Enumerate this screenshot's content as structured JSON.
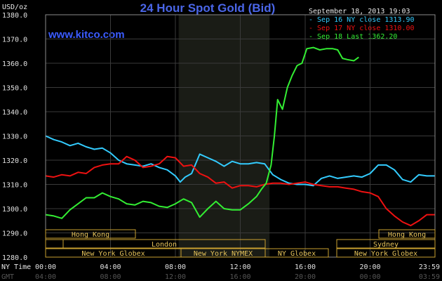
{
  "colors": {
    "background": "#000000",
    "title": "#4a66e8",
    "grid": "#3a3a3a",
    "session_box": "#c9a030",
    "session_text": "#e6c35a",
    "shade": "#1a1c16"
  },
  "header": {
    "unit": "USD/oz",
    "title": "24 Hour Spot Gold (Bid)",
    "timestamp": "September 18, 2013 19:03",
    "site": "www.kitco.com"
  },
  "axis_labels": {
    "ny_time": "NY Time",
    "gmt": "GMT"
  },
  "sessions_top": [
    "Hong Kong",
    "Hong Kong"
  ],
  "sessions_mid": [
    "London",
    "Sydney"
  ],
  "sessions_bottom": [
    "New York Globex",
    "New York NYMEX",
    "NY Globex",
    "New York Globex"
  ],
  "chart_data": {
    "type": "line",
    "ylim": [
      1280,
      1380
    ],
    "xlim": [
      0,
      24
    ],
    "y_ticks": [
      "1380.0",
      "1370.0",
      "1360.0",
      "1350.0",
      "1340.0",
      "1330.0",
      "1320.0",
      "1310.0",
      "1300.0",
      "1290.0",
      "1280.0"
    ],
    "y_tick_values": [
      1380,
      1370,
      1360,
      1350,
      1340,
      1330,
      1320,
      1310,
      1300,
      1290,
      1280
    ],
    "x_ticks": [
      "00:00",
      "04:00",
      "08:00",
      "12:00",
      "16:00",
      "20:00",
      "23:59"
    ],
    "x_tick_values": [
      0,
      4,
      8,
      12,
      16,
      20,
      24
    ],
    "gmt_ticks": [
      "04:00",
      "08:00",
      "12:00",
      "16:00",
      "20:00",
      "00:00",
      "03:59"
    ],
    "shaded_hours": [
      [
        8.2,
        13.8
      ]
    ],
    "series": [
      {
        "name": "Sep 16 NY close 1313.90",
        "color": "#33ccff",
        "x": [
          0,
          0.5,
          1,
          1.5,
          2,
          2.5,
          3,
          3.5,
          4,
          4.5,
          5,
          5.5,
          6,
          6.5,
          7,
          7.5,
          8,
          8.3,
          8.6,
          9,
          9.5,
          10,
          10.5,
          11,
          11.5,
          12,
          12.5,
          13,
          13.5,
          14,
          14.5,
          15,
          15.5,
          16,
          16.5,
          17,
          17.5,
          18,
          18.5,
          19,
          19.5,
          20,
          20.5,
          21,
          21.5,
          22,
          22.5,
          23,
          23.5,
          24
        ],
        "values": [
          1330.0,
          1328.5,
          1327.5,
          1326.0,
          1327.0,
          1325.5,
          1324.5,
          1325.0,
          1323.0,
          1320.0,
          1318.5,
          1318.0,
          1317.5,
          1318.5,
          1317.0,
          1316.0,
          1313.5,
          1311.0,
          1313.0,
          1314.5,
          1322.5,
          1321.0,
          1319.5,
          1317.5,
          1319.5,
          1318.5,
          1318.5,
          1319.0,
          1318.5,
          1314.0,
          1312.0,
          1310.5,
          1310.0,
          1310.0,
          1309.5,
          1312.5,
          1313.5,
          1312.5,
          1313.0,
          1313.5,
          1313.0,
          1314.5,
          1318.0,
          1318.0,
          1316.0,
          1312.0,
          1311.0,
          1314.0,
          1313.5,
          1313.5
        ]
      },
      {
        "name": "Sep 17 NY close 1310.00",
        "color": "#ee1111",
        "x": [
          0,
          0.5,
          1,
          1.5,
          2,
          2.5,
          3,
          3.5,
          4,
          4.5,
          5,
          5.5,
          6,
          6.5,
          7,
          7.5,
          8,
          8.5,
          9,
          9.5,
          10,
          10.5,
          11,
          11.5,
          12,
          12.5,
          13,
          13.5,
          14,
          14.5,
          15,
          15.5,
          16,
          16.5,
          17,
          17.5,
          18,
          18.5,
          19,
          19.5,
          20,
          20.5,
          21,
          21.5,
          22,
          22.5,
          23,
          23.5,
          24
        ],
        "values": [
          1313.5,
          1313.0,
          1314.0,
          1313.5,
          1315.0,
          1314.5,
          1317.0,
          1318.0,
          1318.5,
          1318.5,
          1321.5,
          1320.0,
          1317.0,
          1317.5,
          1318.5,
          1321.5,
          1321.0,
          1317.5,
          1318.0,
          1314.5,
          1313.0,
          1310.5,
          1311.0,
          1308.5,
          1309.5,
          1309.5,
          1309.0,
          1310.0,
          1310.5,
          1310.5,
          1310.0,
          1310.5,
          1311.0,
          1310.0,
          1309.5,
          1309.0,
          1309.0,
          1308.5,
          1308.0,
          1307.0,
          1306.5,
          1305.0,
          1300.0,
          1297.0,
          1294.5,
          1293.0,
          1295.0,
          1297.5,
          1297.5
        ]
      },
      {
        "name": "Sep 18 Last 1362.20",
        "color": "#33ee33",
        "x": [
          0,
          0.5,
          1,
          1.5,
          2,
          2.5,
          3,
          3.5,
          4,
          4.5,
          5,
          5.5,
          6,
          6.5,
          7,
          7.5,
          8,
          8.5,
          9,
          9.5,
          10,
          10.5,
          11,
          11.5,
          12,
          12.5,
          13,
          13.3,
          13.6,
          13.9,
          14.1,
          14.3,
          14.6,
          14.9,
          15.2,
          15.5,
          15.8,
          16.1,
          16.5,
          16.9,
          17.3,
          17.7,
          18.0,
          18.3,
          18.6,
          19.0,
          19.3
        ],
        "values": [
          1297.5,
          1297.0,
          1296.0,
          1299.5,
          1302.0,
          1304.5,
          1304.5,
          1306.5,
          1305.0,
          1304.0,
          1302.0,
          1301.5,
          1303.0,
          1302.5,
          1301.0,
          1300.5,
          1302.0,
          1304.0,
          1302.5,
          1296.5,
          1300.0,
          1303.0,
          1300.0,
          1299.5,
          1299.5,
          1302.0,
          1305.0,
          1308.0,
          1310.5,
          1318.0,
          1330.0,
          1345.0,
          1341.0,
          1350.0,
          1355.0,
          1359.0,
          1360.0,
          1366.0,
          1366.5,
          1365.5,
          1366.0,
          1366.0,
          1365.5,
          1362.0,
          1361.5,
          1361.0,
          1362.5
        ]
      }
    ]
  }
}
